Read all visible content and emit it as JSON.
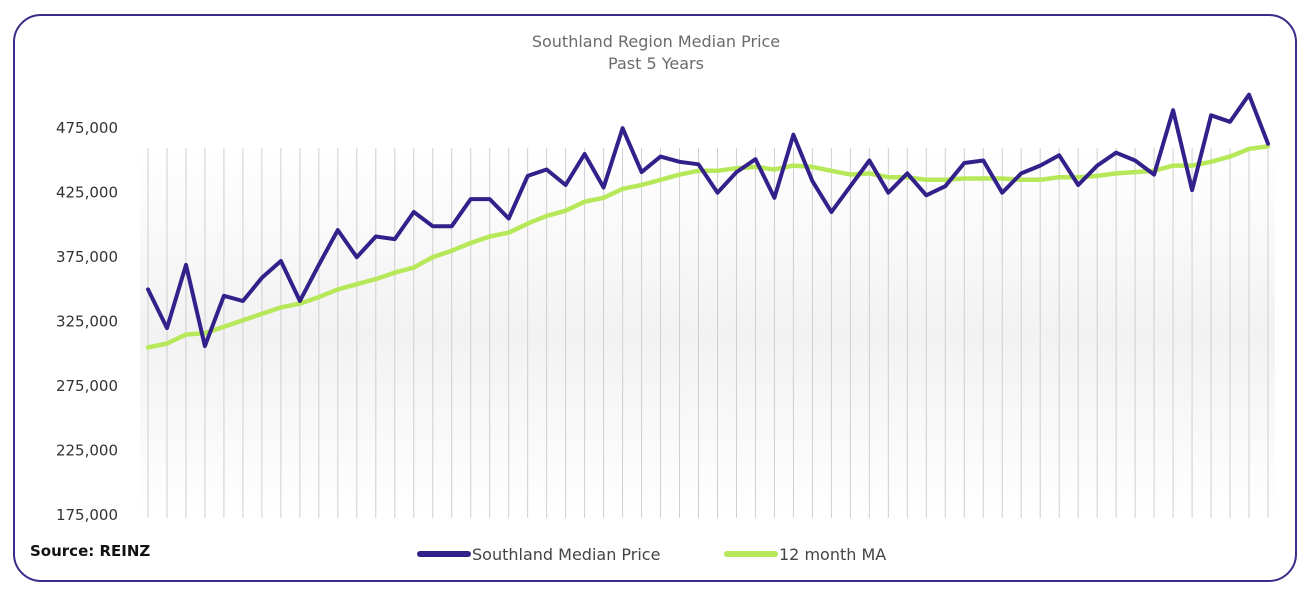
{
  "chart_data": {
    "type": "line",
    "title": "Southland Region Median Price",
    "subtitle": "Past 5 Years",
    "xlabel": "",
    "ylabel": "",
    "ylim": [
      175000,
      500000
    ],
    "yticks": [
      175000,
      225000,
      275000,
      325000,
      375000,
      425000,
      475000
    ],
    "ytick_labels": [
      "175,000",
      "225,000",
      "275,000",
      "325,000",
      "375,000",
      "425,000",
      "475,000"
    ],
    "grid": "vertical",
    "legend_position": "bottom",
    "series": [
      {
        "name": "Southland Median Price",
        "color": "#33208a",
        "values": [
          350000,
          320000,
          369000,
          306000,
          345000,
          341000,
          359000,
          372000,
          341000,
          369000,
          396000,
          375000,
          391000,
          389000,
          410000,
          399000,
          399000,
          420000,
          420000,
          405000,
          438000,
          443000,
          431000,
          455000,
          429000,
          475000,
          441000,
          453000,
          449000,
          447000,
          425000,
          441000,
          451000,
          421000,
          470000,
          434000,
          410000,
          430000,
          450000,
          425000,
          440000,
          423000,
          430000,
          448000,
          450000,
          425000,
          440000,
          446000,
          454000,
          431000,
          446000,
          456000,
          450000,
          439000,
          489000,
          427000,
          485000,
          480000,
          501000,
          463000
        ]
      },
      {
        "name": "12 month MA",
        "color": "#b6e85a",
        "values": [
          305000,
          308000,
          315000,
          316000,
          321000,
          326000,
          331000,
          336000,
          339000,
          344000,
          350000,
          354000,
          358000,
          363000,
          367000,
          375000,
          380000,
          386000,
          391000,
          394000,
          401000,
          407000,
          411000,
          418000,
          421000,
          428000,
          431000,
          435000,
          439000,
          442000,
          442000,
          444000,
          445000,
          443000,
          446000,
          445000,
          442000,
          439000,
          440000,
          437000,
          437000,
          435000,
          435000,
          436000,
          436000,
          436000,
          435000,
          435000,
          437000,
          437000,
          438000,
          440000,
          441000,
          442000,
          446000,
          446000,
          449000,
          453000,
          459000,
          461000
        ]
      }
    ]
  },
  "source_label": "Source: REINZ"
}
